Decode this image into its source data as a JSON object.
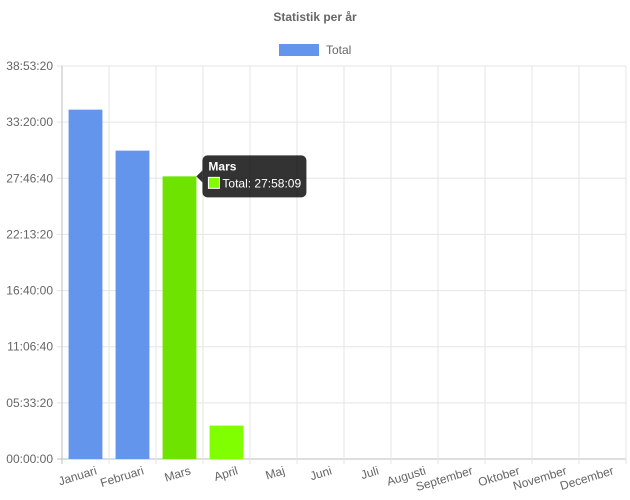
{
  "chart_data": {
    "type": "bar",
    "title": "Statistik per år",
    "categories": [
      "Januari",
      "Februari",
      "Mars",
      "April",
      "Maj",
      "Juni",
      "Juli",
      "Augusti",
      "September",
      "Oktober",
      "November",
      "December"
    ],
    "series": [
      {
        "name": "Total",
        "values_seconds": [
          124450,
          109850,
          100689,
          11900,
          0,
          0,
          0,
          0,
          0,
          0,
          0,
          0
        ],
        "bar_colors": [
          "#6495ED",
          "#6495ED",
          "#6FE300",
          "#7FFF00",
          "#6495ED",
          "#6495ED",
          "#6495ED",
          "#6495ED",
          "#6495ED",
          "#6495ED",
          "#6495ED",
          "#6495ED"
        ]
      }
    ],
    "y_ticks": [
      "00:00:00",
      "05:33:20",
      "11:06:40",
      "16:40:00",
      "22:13:20",
      "27:46:40",
      "33:20:00",
      "38:53:20"
    ],
    "ylim_seconds": [
      0,
      140000
    ],
    "legend": {
      "label": "Total",
      "color": "#6495ED",
      "position": "top"
    },
    "grid": true,
    "tooltip": {
      "category_index": 2,
      "title": "Mars",
      "body": "Total: 27:58:09",
      "swatch_color": "#7FFF00"
    }
  }
}
